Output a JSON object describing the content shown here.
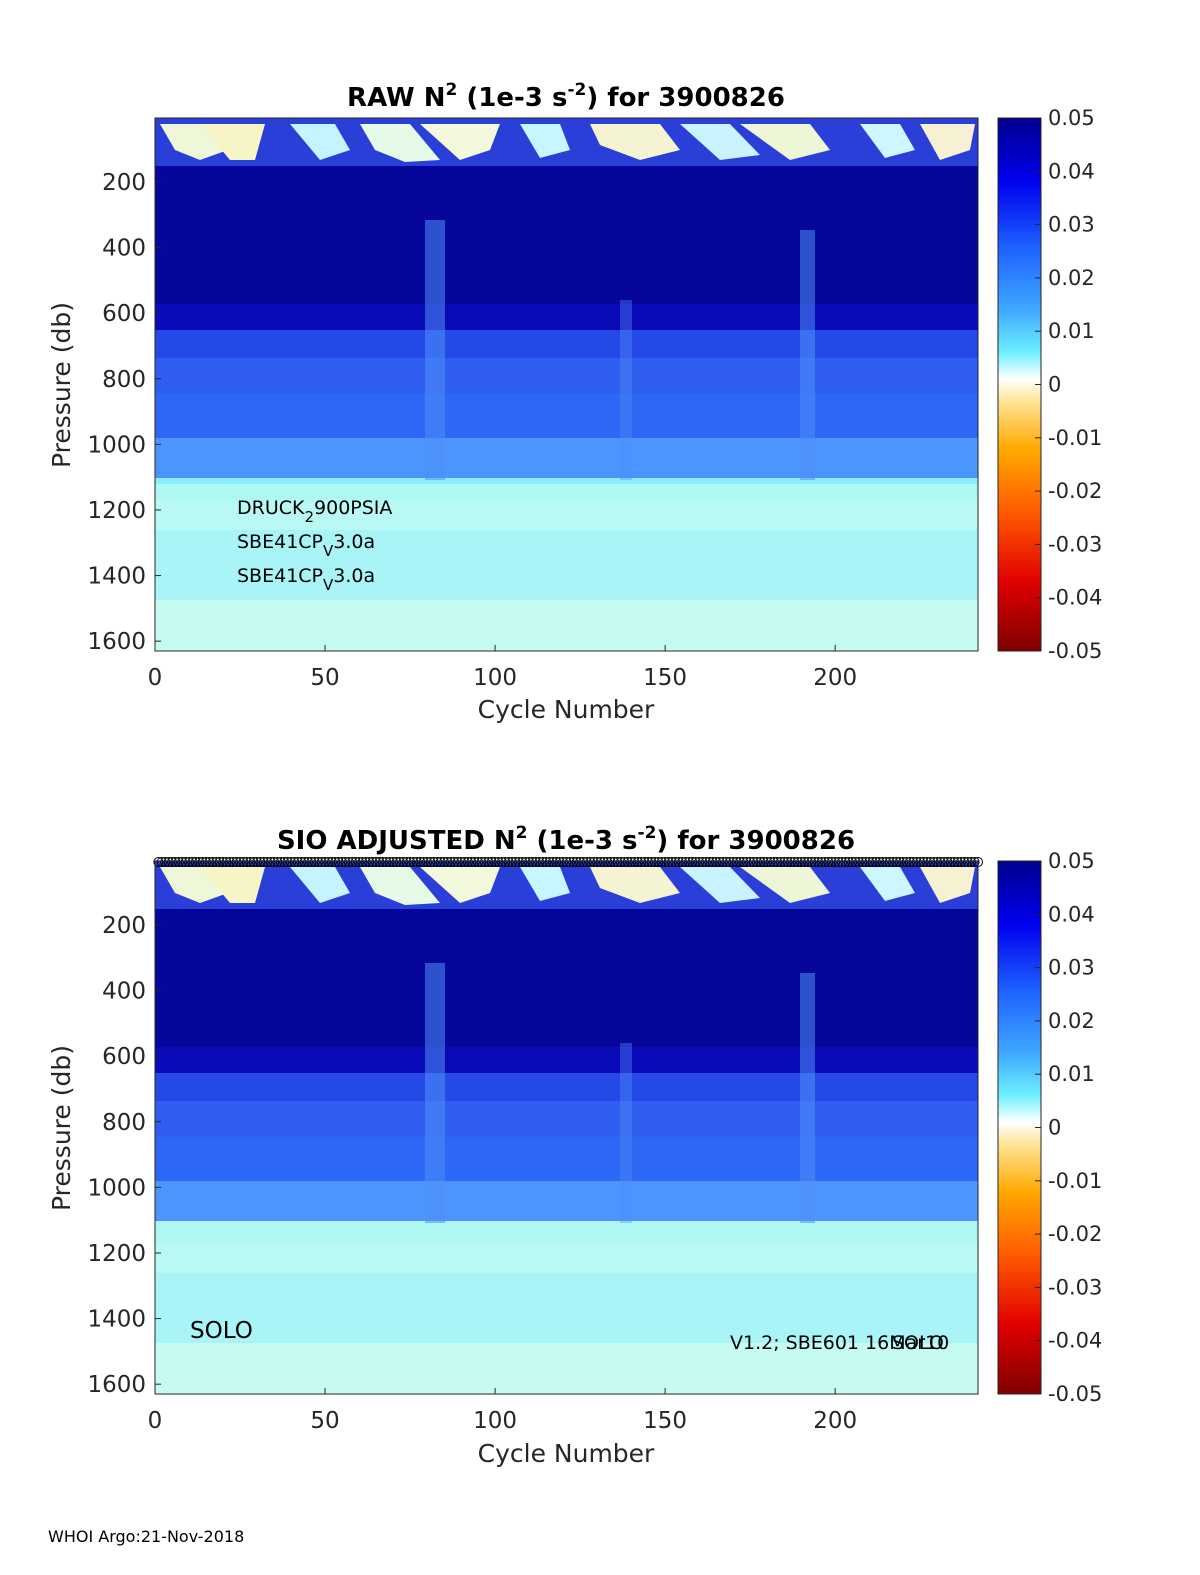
{
  "colorbar": {
    "ticks": [
      "0.05",
      "0.04",
      "0.03",
      "0.02",
      "0.01",
      "0",
      "-0.01",
      "-0.02",
      "-0.03",
      "-0.04",
      "-0.05"
    ],
    "min": -0.05,
    "max": 0.05
  },
  "chart_data": [
    {
      "type": "heatmap",
      "title_prefix": "RAW N",
      "title_sup1": "2",
      "title_mid": " (1e-3 s",
      "title_sup2": "-2",
      "title_suffix": ") for 3900826",
      "xlabel": "Cycle Number",
      "ylabel": "Pressure (db)",
      "xlim": [
        0,
        242
      ],
      "ylim": [
        1630,
        5
      ],
      "xticks": [
        "0",
        "50",
        "100",
        "150",
        "200"
      ],
      "yticks": [
        "200",
        "400",
        "600",
        "800",
        "1000",
        "1200",
        "1400",
        "1600"
      ],
      "colorbar_range": [
        -0.05,
        0.05
      ],
      "annotations": [
        {
          "base": "DRUCK",
          "sub": "2",
          "rest": "900PSIA"
        },
        {
          "base": "SBE41CP",
          "sub": "V",
          "rest": "3.0a"
        },
        {
          "base": "SBE41CP",
          "sub": "V",
          "rest": "3.0a"
        }
      ]
    },
    {
      "type": "heatmap",
      "title_prefix": "SIO  ADJUSTED N",
      "title_sup1": "2",
      "title_mid": " (1e-3 s",
      "title_sup2": "-2",
      "title_suffix": ") for 3900826",
      "xlabel": "Cycle Number",
      "ylabel": "Pressure (db)",
      "xlim": [
        0,
        242
      ],
      "ylim": [
        1630,
        5
      ],
      "xticks": [
        "0",
        "50",
        "100",
        "150",
        "200"
      ],
      "yticks": [
        "200",
        "400",
        "600",
        "800",
        "1000",
        "1200",
        "1400",
        "1600"
      ],
      "colorbar_range": [
        -0.05,
        0.05
      ],
      "label_left": "SOLO",
      "label_right_a": "V1.2; SBE601 16Mar10",
      "label_right_b": "SOLO"
    }
  ],
  "footer": "WHOI Argo:21-Nov-2018"
}
